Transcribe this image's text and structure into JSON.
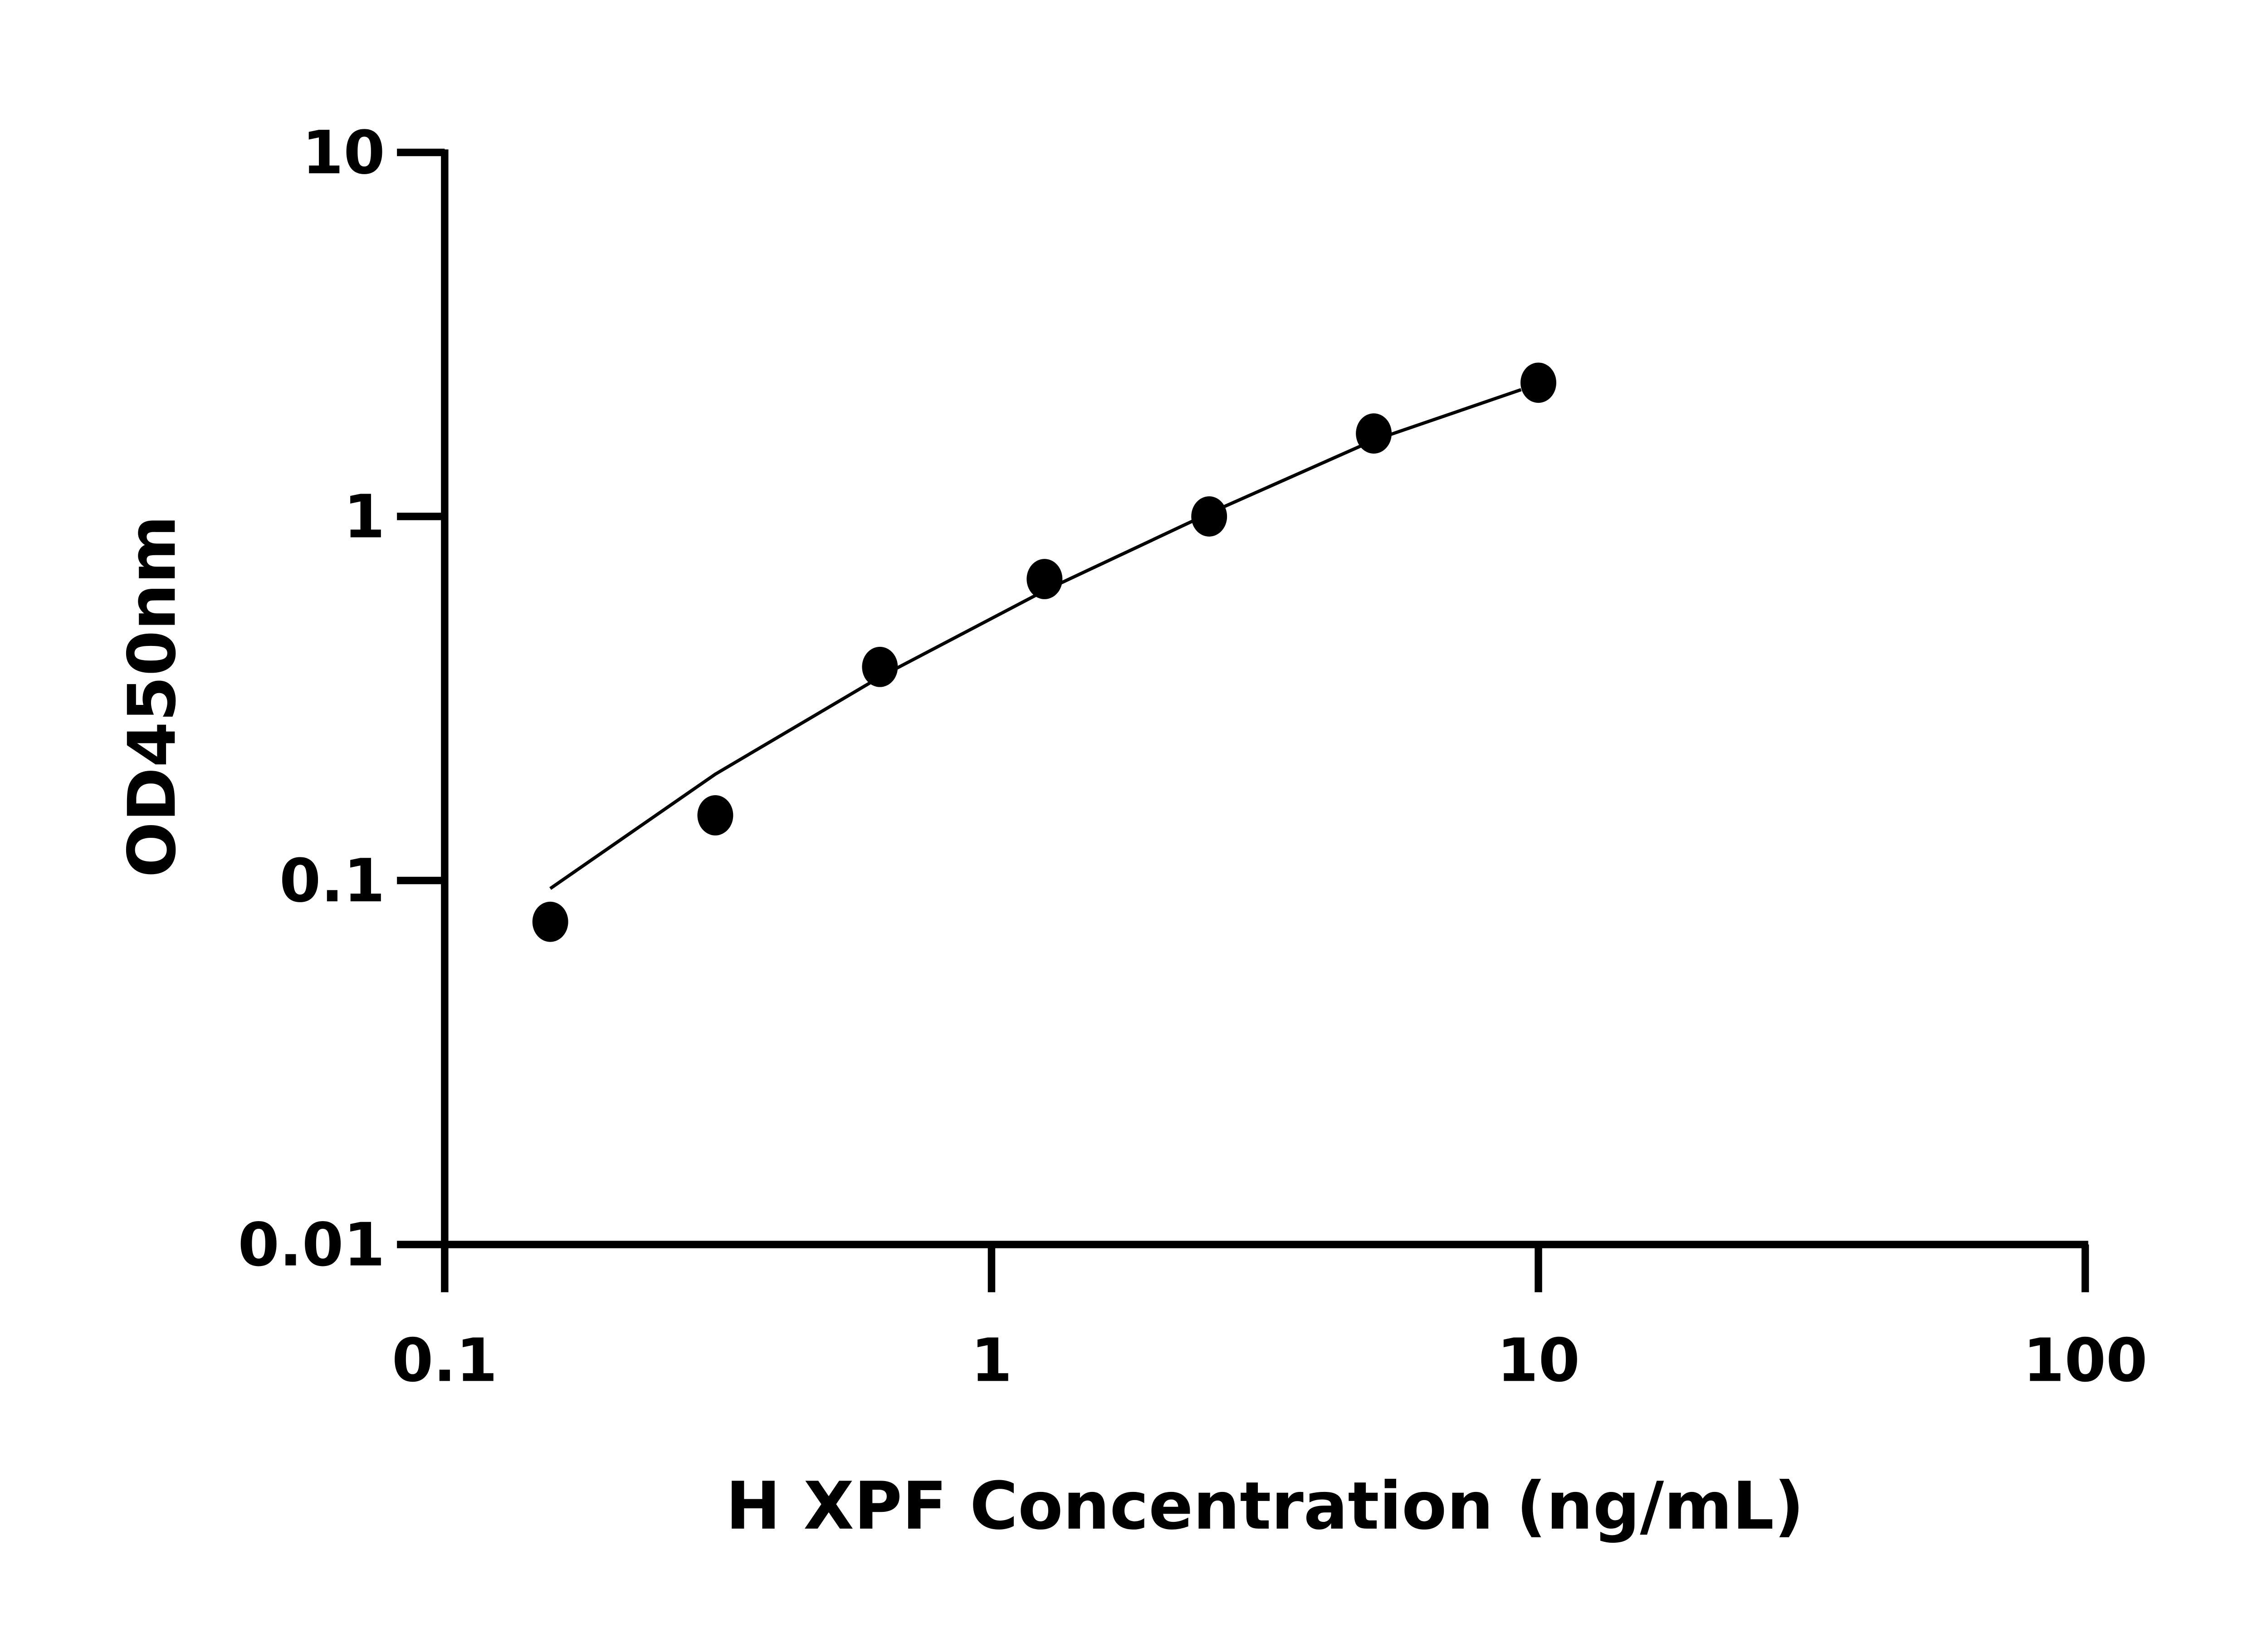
{
  "chart_data": {
    "type": "scatter",
    "title": "",
    "xlabel": "H XPF Concentration (ng/mL)",
    "ylabel": "OD450nm",
    "x_scale": "log",
    "y_scale": "log",
    "xlim": [
      0.1,
      100
    ],
    "ylim": [
      0.01,
      10
    ],
    "x_ticks": [
      "0.1",
      "1",
      "10",
      "100"
    ],
    "y_ticks": [
      "0.01",
      "0.1",
      "1",
      "10"
    ],
    "grid": false,
    "points": {
      "x": [
        0.156,
        0.3125,
        0.625,
        1.25,
        2.5,
        5,
        10
      ],
      "y": [
        0.077,
        0.151,
        0.386,
        0.673,
        1.0,
        1.69,
        2.33
      ]
    },
    "fit_curve": {
      "x": [
        0.156,
        0.3125,
        0.625,
        1.25,
        2.5,
        5,
        9.3
      ],
      "y": [
        0.095,
        0.196,
        0.362,
        0.625,
        1.02,
        1.62,
        2.23
      ]
    },
    "colors": {
      "points": "#000000",
      "curve": "#000000",
      "axes": "#000000"
    }
  }
}
